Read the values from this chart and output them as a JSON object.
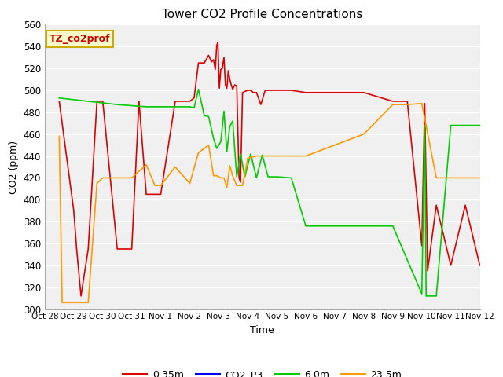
{
  "title": "Tower CO2 Profile Concentrations",
  "xlabel": "Time",
  "ylabel": "CO2 (ppm)",
  "ylim": [
    300,
    560
  ],
  "yticks": [
    300,
    320,
    340,
    360,
    380,
    400,
    420,
    440,
    460,
    480,
    500,
    520,
    540,
    560
  ],
  "annotation_text": "TZ_co2prof",
  "annotation_bg": "#ffffcc",
  "annotation_border": "#ccaa00",
  "series": {
    "0.35m": {
      "color": "#dd0000",
      "x": [
        28.5,
        29.0,
        29.1,
        29.25,
        29.5,
        29.8,
        30.0,
        30.5,
        31.0,
        31.25,
        31.5,
        32.0,
        32.5,
        33.0,
        33.15,
        33.3,
        33.5,
        33.65,
        33.75,
        33.82,
        33.88,
        33.93,
        33.97,
        34.02,
        34.07,
        34.12,
        34.18,
        34.23,
        34.28,
        34.33,
        34.38,
        34.43,
        34.48,
        34.55,
        34.62,
        34.7,
        34.75,
        34.82,
        34.9,
        35.0,
        35.1,
        35.2,
        35.3,
        35.45,
        35.6,
        36.0,
        36.5,
        37.0,
        38.0,
        39.0,
        40.0,
        40.5,
        41.0,
        41.1,
        41.2,
        41.5,
        42.0,
        42.5,
        43.0
      ],
      "y": [
        490,
        390,
        355,
        312,
        355,
        490,
        490,
        355,
        355,
        490,
        405,
        405,
        490,
        490,
        493,
        525,
        525,
        532,
        526,
        528,
        519,
        541,
        544,
        502,
        519,
        520,
        530,
        505,
        502,
        518,
        510,
        505,
        501,
        505,
        504,
        420,
        416,
        498,
        499,
        500,
        500,
        498,
        498,
        487,
        500,
        500,
        500,
        498,
        498,
        498,
        490,
        490,
        358,
        488,
        335,
        395,
        340,
        395,
        340
      ]
    },
    "CO2_P3": {
      "color": "#0000ff",
      "x": [],
      "y": []
    },
    "6.0m": {
      "color": "#00cc00",
      "x": [
        28.5,
        29.5,
        30.5,
        31.0,
        31.5,
        32.0,
        32.5,
        33.0,
        33.15,
        33.3,
        33.5,
        33.65,
        33.82,
        33.93,
        34.07,
        34.18,
        34.28,
        34.38,
        34.48,
        34.62,
        34.75,
        34.9,
        35.1,
        35.3,
        35.5,
        35.7,
        36.0,
        36.5,
        37.0,
        38.0,
        39.0,
        40.0,
        41.0,
        41.1,
        41.15,
        41.5,
        42.0,
        43.0
      ],
      "y": [
        493,
        490,
        487,
        486,
        485,
        485,
        485,
        485,
        484,
        501,
        477,
        476,
        456,
        447,
        453,
        481,
        444,
        467,
        472,
        421,
        442,
        421,
        442,
        420,
        441,
        421,
        421,
        420,
        376,
        376,
        376,
        376,
        314,
        468,
        312,
        312,
        468,
        468
      ]
    },
    "23.5m": {
      "color": "#ff9900",
      "x": [
        28.5,
        28.6,
        29.0,
        29.5,
        29.8,
        30.0,
        30.5,
        31.0,
        31.5,
        31.8,
        32.0,
        32.5,
        33.0,
        33.3,
        33.65,
        33.82,
        33.93,
        34.07,
        34.18,
        34.28,
        34.38,
        34.48,
        34.62,
        34.82,
        35.0,
        35.3,
        35.6,
        36.0,
        37.0,
        38.0,
        39.0,
        40.0,
        40.5,
        41.0,
        41.5,
        42.0,
        43.0
      ],
      "y": [
        458,
        306,
        306,
        306,
        415,
        420,
        420,
        420,
        432,
        413,
        413,
        430,
        415,
        443,
        450,
        422,
        422,
        420,
        420,
        411,
        431,
        422,
        413,
        413,
        438,
        440,
        440,
        440,
        440,
        450,
        460,
        487,
        487,
        488,
        420,
        420,
        420
      ]
    }
  },
  "xtick_positions": [
    28,
    29,
    30,
    31,
    32,
    33,
    34,
    35,
    36,
    37,
    38,
    39,
    40,
    41,
    42,
    43
  ],
  "xtick_labels": [
    "Oct 28",
    "Oct 29",
    "Oct 30",
    "Oct 31",
    "Nov 1",
    "Nov 2",
    "Nov 3",
    "Nov 4",
    "Nov 5",
    "Nov 6",
    "Nov 7",
    "Nov 8",
    "Nov 9",
    "Nov 10",
    "Nov 11",
    "Nov 12"
  ]
}
